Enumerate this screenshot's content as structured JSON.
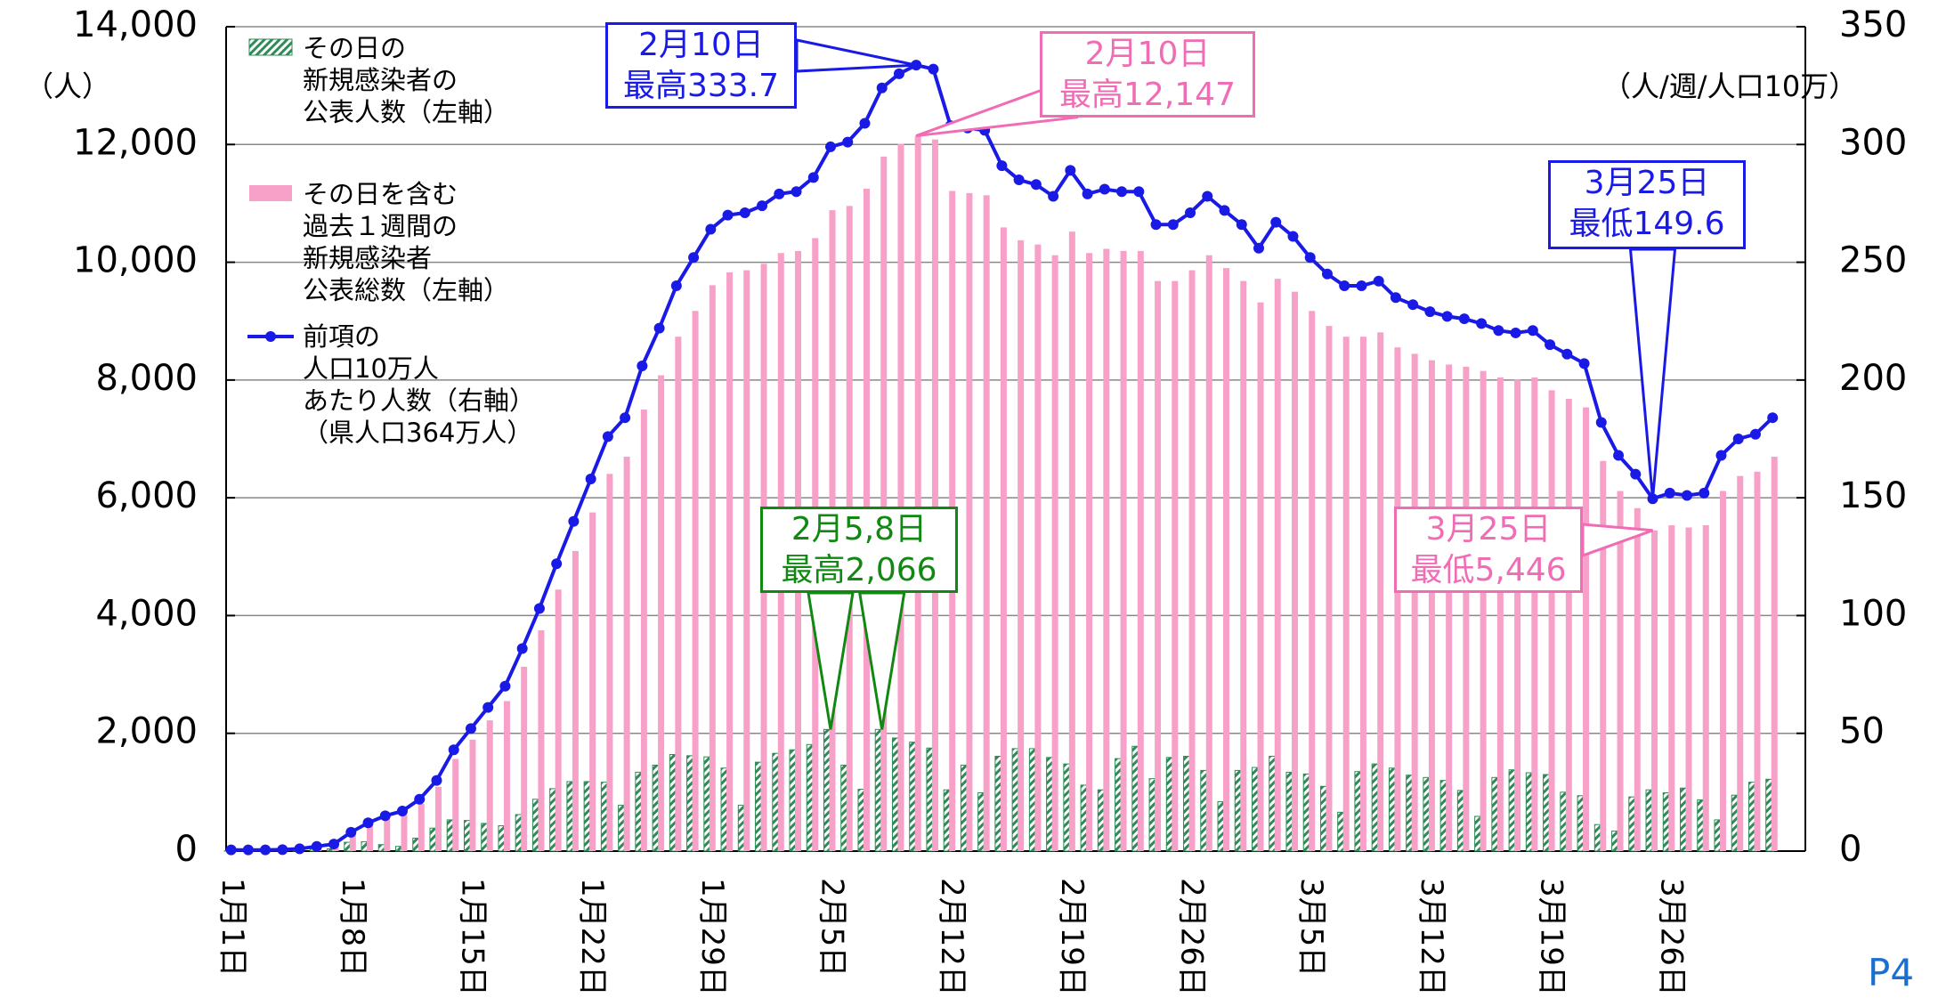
{
  "chart_data": {
    "type": "bar",
    "y_label": "（人）",
    "y2_label": "（人/週/人口10万）",
    "page_label": "P4",
    "ylim": [
      0,
      14000
    ],
    "yticks": [
      0,
      {
        "value": 2000,
        "label": "2,000"
      },
      {
        "value": 4000,
        "label": "4,000"
      },
      {
        "value": 6000,
        "label": "6,000"
      },
      {
        "value": 8000,
        "label": "8,000"
      },
      {
        "value": 10000,
        "label": "10,000"
      },
      {
        "value": 12000,
        "label": "12,000"
      },
      {
        "value": 14000,
        "label": "14,000"
      }
    ],
    "y2lim": [
      0,
      350
    ],
    "y2ticks": [
      0,
      50,
      100,
      150,
      200,
      250,
      300,
      350
    ],
    "grid": true,
    "categories": [
      "1月1日",
      null,
      null,
      null,
      null,
      null,
      null,
      "1月8日",
      null,
      null,
      null,
      null,
      null,
      null,
      "1月15日",
      null,
      null,
      null,
      null,
      null,
      null,
      "1月22日",
      null,
      null,
      null,
      null,
      null,
      null,
      "1月29日",
      null,
      null,
      null,
      null,
      null,
      null,
      "2月5日",
      null,
      null,
      null,
      null,
      null,
      null,
      "2月12日",
      null,
      null,
      null,
      null,
      null,
      null,
      "2月19日",
      null,
      null,
      null,
      null,
      null,
      null,
      "2月26日",
      null,
      null,
      null,
      null,
      null,
      null,
      "3月5日",
      null,
      null,
      null,
      null,
      null,
      null,
      "3月12日",
      null,
      null,
      null,
      null,
      null,
      null,
      "3月19日",
      null,
      null,
      null,
      null,
      null,
      null,
      "3月26日",
      null,
      null,
      null,
      null,
      null,
      null
    ],
    "series": [
      {
        "name": "その日の\n新規感染者の\n公表人数（左軸）",
        "type": "bar",
        "color": "#2e8b57",
        "values": [
          5,
          10,
          5,
          5,
          10,
          30,
          40,
          150,
          160,
          110,
          80,
          220,
          390,
          530,
          520,
          470,
          430,
          620,
          880,
          1060,
          1180,
          1180,
          1170,
          780,
          1340,
          1460,
          1640,
          1620,
          1600,
          1410,
          780,
          1510,
          1660,
          1720,
          1810,
          2066,
          1460,
          1050,
          2066,
          1920,
          1850,
          1750,
          1040,
          1460,
          990,
          1610,
          1740,
          1740,
          1590,
          1480,
          1120,
          1040,
          1570,
          1780,
          1230,
          1590,
          1610,
          1370,
          840,
          1370,
          1420,
          1610,
          1340,
          1310,
          1100,
          660,
          1350,
          1480,
          1410,
          1290,
          1250,
          1200,
          1030,
          590,
          1250,
          1380,
          1330,
          1300,
          1000,
          940,
          450,
          340,
          920,
          1040,
          990,
          1070,
          870,
          530,
          950,
          1170,
          1220
        ]
      },
      {
        "name": "その日を含む\n過去１週間の\n新規感染者\n公表総数（左軸）",
        "type": "bar",
        "color": "#f7a1c8",
        "values": [
          18,
          18,
          18,
          22,
          36,
          73,
          109,
          291,
          437,
          546,
          619,
          801,
          1092,
          1565,
          1893,
          2220,
          2548,
          3130,
          3749,
          4441,
          5096,
          5751,
          6406,
          6698,
          7498,
          8081,
          8736,
          9173,
          9610,
          9828,
          9864,
          9974,
          10156,
          10192,
          10410,
          10884,
          10956,
          11248,
          11794,
          12012,
          12147,
          12085,
          11211,
          11175,
          11138,
          10592,
          10374,
          10301,
          10119,
          10520,
          10156,
          10228,
          10192,
          10192,
          9682,
          9682,
          9864,
          10119,
          9901,
          9682,
          9318,
          9719,
          9500,
          9173,
          8918,
          8736,
          8736,
          8809,
          8554,
          8445,
          8336,
          8263,
          8226,
          8154,
          8044,
          8008,
          8044,
          7826,
          7680,
          7535,
          6625,
          6115,
          5824,
          5446,
          5533,
          5496,
          5533,
          6115,
          6370,
          6443,
          6698
        ]
      },
      {
        "name": "前項の\n人口10万人\nあたり人数（右軸）\n（県人口364万人）",
        "type": "line",
        "axis": "y2",
        "color": "#1a1ae6",
        "values": [
          0.5,
          0.5,
          0.5,
          0.6,
          1,
          2,
          3,
          8,
          12,
          15,
          17,
          22,
          30,
          43,
          52,
          61,
          70,
          86,
          103,
          122,
          140,
          158,
          176,
          184,
          206,
          222,
          240,
          252,
          264,
          270,
          271,
          274,
          279,
          280,
          286,
          299,
          301,
          309,
          324,
          330,
          333.7,
          332,
          308,
          307,
          306,
          291,
          285,
          283,
          278,
          289,
          279,
          281,
          280,
          280,
          266,
          266,
          271,
          278,
          272,
          266,
          256,
          267,
          261,
          252,
          245,
          240,
          240,
          242,
          235,
          232,
          229,
          227,
          226,
          224,
          221,
          220,
          221,
          215,
          211,
          207,
          182,
          168,
          160,
          149.6,
          152,
          151,
          152,
          168,
          175,
          177,
          184
        ]
      }
    ],
    "annotations": [
      {
        "text": "2月10日\n最高333.7",
        "color": "#1a1ae6"
      },
      {
        "text": "2月10日\n最高12,147",
        "color": "#f06cb4"
      },
      {
        "text": "2月5,8日\n最高2,066",
        "color": "#118811"
      },
      {
        "text": "3月25日\n最低149.6",
        "color": "#1a1ae6"
      },
      {
        "text": "3月25日\n最低5,446",
        "color": "#f06cb4"
      }
    ]
  }
}
